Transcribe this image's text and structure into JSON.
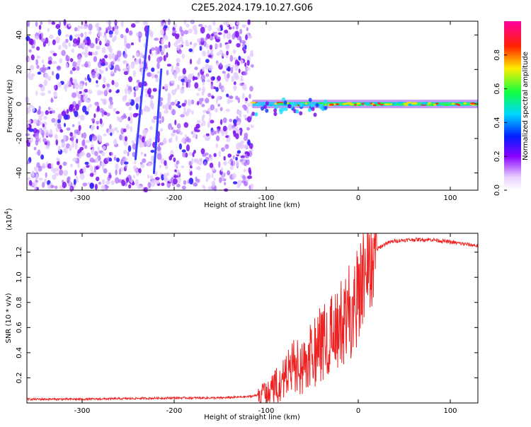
{
  "page": {
    "title": "C2E5.2024.179.10.27.G06"
  },
  "colors": {
    "axis": "#000000",
    "snr_line": "#ee2222",
    "background": "#ffffff"
  },
  "chart_data": [
    {
      "type": "heatmap",
      "name": "spectrogram",
      "xlabel": "Height of straight line (km)",
      "ylabel": "Frequency (Hz)",
      "xlim": [
        -360,
        130
      ],
      "ylim": [
        -50,
        48
      ],
      "xticks": [
        -300,
        -200,
        -100,
        0,
        100
      ],
      "xtick_labels": [
        "-300",
        "-200",
        "-100",
        "0",
        "100"
      ],
      "yticks": [
        40,
        20,
        0,
        -20,
        -40
      ],
      "ytick_labels": [
        "40",
        "20",
        "0",
        "-20",
        "-40"
      ],
      "colorbar": {
        "label": "Normalized spectral amplitude",
        "range": [
          0,
          1
        ],
        "ticks": [
          0.0,
          0.2,
          0.4,
          0.6,
          0.8
        ],
        "tick_labels": [
          "0.0",
          "0.2",
          "0.4",
          "0.6",
          "0.8"
        ],
        "colormap": "rainbow (white-violet-blue-cyan-green-yellow-red-pink)"
      },
      "features": [
        {
          "kind": "noise",
          "x_range": [
            -360,
            -115
          ],
          "y_range": [
            -50,
            48
          ],
          "amplitude": 0.15
        },
        {
          "kind": "tone",
          "x_range": [
            -115,
            130
          ],
          "center_hz": 0,
          "amplitude": 0.85
        }
      ]
    },
    {
      "type": "line",
      "name": "snr",
      "xlabel": "Height of straight line (km)",
      "ylabel": "SNR (10 * v/v)",
      "yscale_label": "(x10",
      "yscale_exp": "4",
      "xlim": [
        -360,
        130
      ],
      "ylim": [
        0,
        1.35
      ],
      "xticks": [
        -300,
        -200,
        -100,
        0,
        100
      ],
      "xtick_labels": [
        "-300",
        "-200",
        "-100",
        "0",
        "100"
      ],
      "yticks": [
        0.2,
        0.4,
        0.6,
        0.8,
        1.0,
        1.2
      ],
      "ytick_labels": [
        "0.2",
        "0.4",
        "0.6",
        "0.8",
        "1.0",
        "1.2"
      ],
      "series": [
        {
          "x": [
            -360,
            -300,
            -200,
            -150,
            -120,
            -110,
            -100,
            -90,
            -80,
            -70,
            -60,
            -50,
            -40,
            -30,
            -20,
            -10,
            0,
            10,
            20,
            30,
            40,
            60,
            80,
            100,
            120,
            130
          ],
          "y": [
            0.03,
            0.03,
            0.04,
            0.04,
            0.05,
            0.06,
            0.08,
            0.12,
            0.22,
            0.3,
            0.28,
            0.38,
            0.48,
            0.55,
            0.62,
            0.72,
            0.85,
            1.05,
            1.22,
            1.27,
            1.29,
            1.3,
            1.3,
            1.28,
            1.26,
            1.25
          ]
        }
      ]
    }
  ]
}
